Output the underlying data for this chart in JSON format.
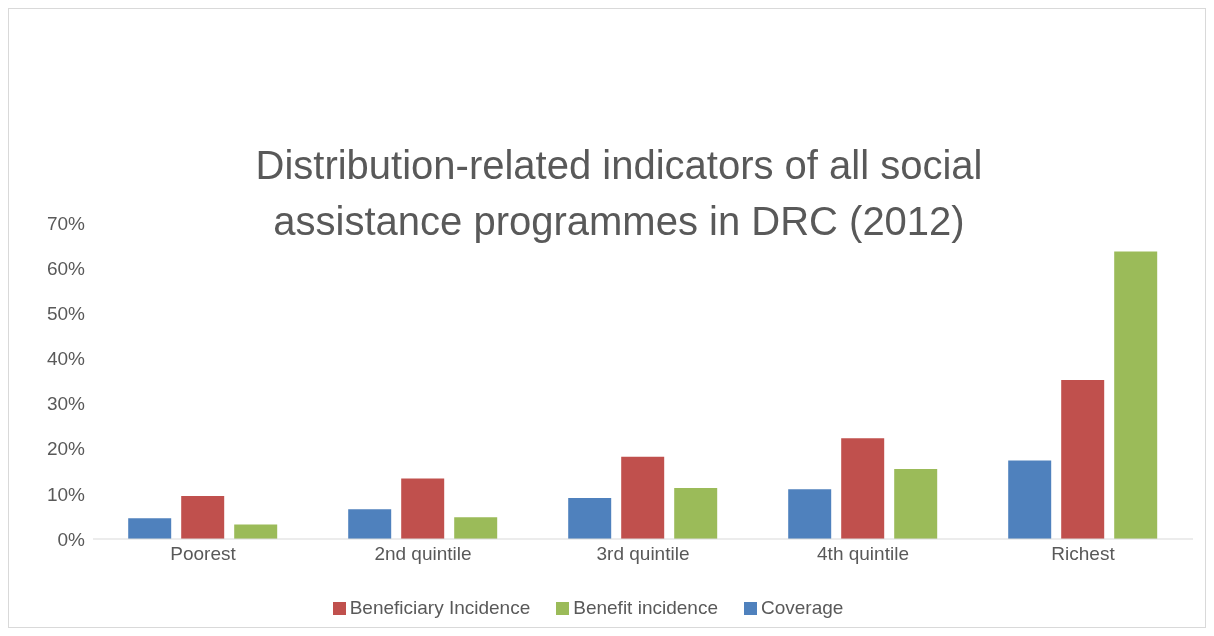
{
  "chart_data": {
    "type": "bar",
    "title": "Distribution-related indicators of all social assistance programmes in DRC (2012)",
    "categories": [
      "Poorest",
      "2nd quintile",
      "3rd quintile",
      "4th quintile",
      "Richest"
    ],
    "series": [
      {
        "name": "Coverage",
        "color": "#4f81bd",
        "values": [
          4.6,
          6.6,
          9.1,
          11.0,
          17.4
        ]
      },
      {
        "name": "Beneficiary Incidence",
        "color": "#c0504d",
        "values": [
          9.5,
          13.4,
          18.2,
          22.3,
          35.2
        ]
      },
      {
        "name": "Benefit incidence",
        "color": "#9bbb59",
        "values": [
          3.2,
          4.8,
          11.3,
          15.5,
          63.7
        ]
      }
    ],
    "ylim": [
      0,
      70
    ],
    "yticks": [
      {
        "value": 0,
        "label": "0%"
      },
      {
        "value": 10,
        "label": "10%"
      },
      {
        "value": 20,
        "label": "20%"
      },
      {
        "value": 30,
        "label": "30%"
      },
      {
        "value": 40,
        "label": "40%"
      },
      {
        "value": 50,
        "label": "50%"
      },
      {
        "value": 60,
        "label": "60%"
      },
      {
        "value": 70,
        "label": "70%"
      }
    ],
    "grid": false,
    "legend": "bottom"
  }
}
